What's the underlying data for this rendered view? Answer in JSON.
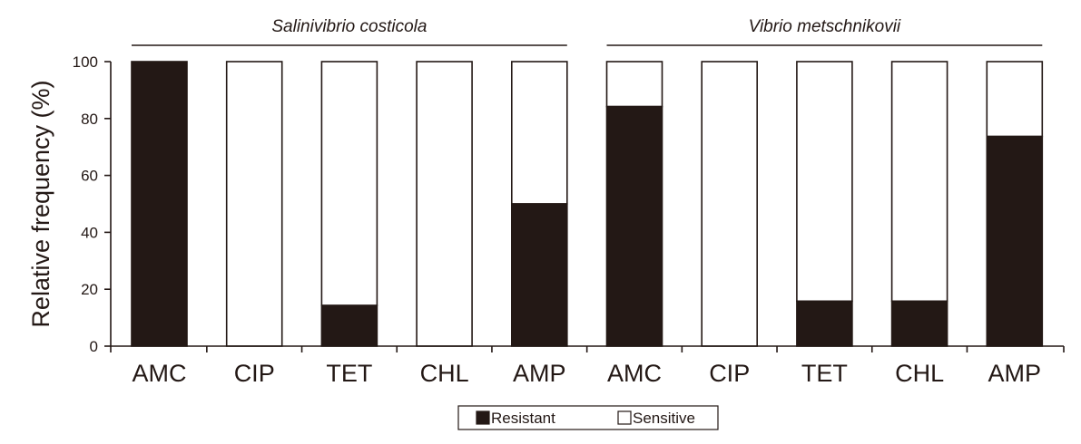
{
  "chart_data": {
    "type": "bar",
    "stacked": true,
    "ylabel": "Relative frequency (%)",
    "xlabel": "",
    "ylim": [
      0,
      100
    ],
    "yticks": [
      0,
      20,
      40,
      60,
      80,
      100
    ],
    "groups": [
      {
        "title": "Salinivibrio costicola",
        "categories": [
          "AMC",
          "CIP",
          "TET",
          "CHL",
          "AMP"
        ]
      },
      {
        "title": "Vibrio metschnikovii",
        "categories": [
          "AMC",
          "CIP",
          "TET",
          "CHL",
          "AMP"
        ]
      }
    ],
    "categories": [
      "AMC",
      "CIP",
      "TET",
      "CHL",
      "AMP",
      "AMC",
      "CIP",
      "TET",
      "CHL",
      "AMP"
    ],
    "series": [
      {
        "name": "Resistant",
        "color": "#231815",
        "values": [
          100,
          0,
          14.3,
          0,
          50,
          84.2,
          0,
          15.8,
          15.8,
          73.7
        ]
      },
      {
        "name": "Sensitive",
        "color": "#ffffff",
        "values": [
          0,
          100,
          85.7,
          100,
          50,
          15.8,
          100,
          84.2,
          84.2,
          26.3
        ]
      }
    ],
    "grid": false,
    "legend": {
      "position": "bottom-center",
      "entries": [
        "Resistant",
        "Sensitive"
      ]
    }
  },
  "colors": {
    "ink": "#231815",
    "background": "#ffffff"
  }
}
